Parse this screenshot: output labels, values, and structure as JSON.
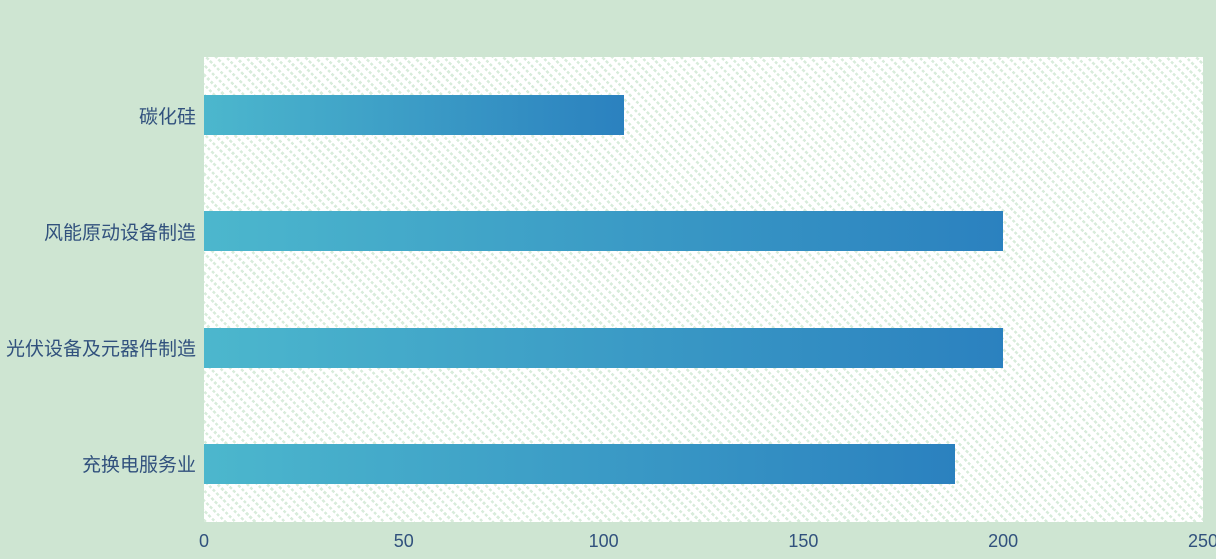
{
  "page": {
    "background_color": "#cee5d2",
    "text_color": "#31517d"
  },
  "chart_data": {
    "type": "bar",
    "orientation": "horizontal",
    "title": "",
    "xlabel": "",
    "ylabel": "",
    "categories": [
      "碳化硅",
      "风能原动设备制造",
      "光伏设备及元器件制造",
      "充换电服务业"
    ],
    "values": [
      105,
      200,
      200,
      188
    ],
    "xlim": [
      0,
      250
    ],
    "x_ticks": [
      0,
      50,
      100,
      150,
      200,
      250
    ],
    "grid": false,
    "legend_position": "none",
    "plot_background": "white-with-green-diagonal-dot-hatch",
    "hatch_color": "#d8ecdb",
    "bar_gradient_start": "#4cb7cd",
    "bar_gradient_end": "#2b81bf"
  }
}
